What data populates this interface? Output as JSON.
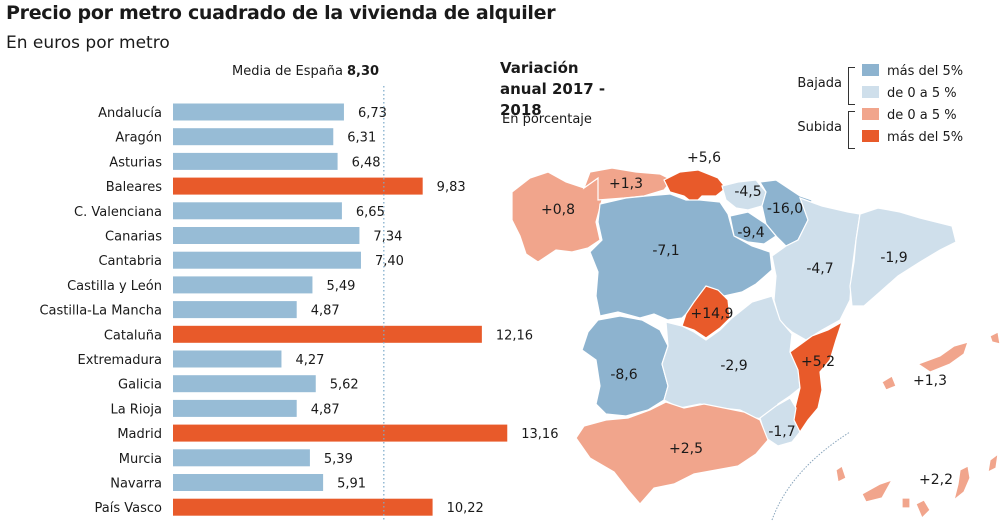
{
  "header": {
    "title": "Precio por metro cuadrado de la vivienda de alquiler",
    "subtitle": "En euros por metro"
  },
  "colors": {
    "below_mean": "#97bcd6",
    "above_mean": "#e85a2a",
    "bajada_mas5": "#8db3cf",
    "bajada_0a5": "#cfdfeb",
    "subida_0a5": "#f1a58c",
    "subida_mas5": "#e85a2a"
  },
  "chart_data": [
    {
      "type": "bar",
      "orientation": "horizontal",
      "title": "Precio por metro cuadrado de la vivienda de alquiler",
      "subtitle": "En euros por metro",
      "xlabel": "",
      "ylabel": "",
      "reference_line": {
        "label": "Media de España",
        "value_label": "8,30",
        "value": 8.3
      },
      "categories": [
        "Andalucía",
        "Aragón",
        "Asturias",
        "Baleares",
        "C. Valenciana",
        "Canarias",
        "Cantabria",
        "Castilla y León",
        "Castilla-La Mancha",
        "Cataluña",
        "Extremadura",
        "Galicia",
        "La Rioja",
        "Madrid",
        "Murcia",
        "Navarra",
        "País Vasco"
      ],
      "values": [
        6.73,
        6.31,
        6.48,
        9.83,
        6.65,
        7.34,
        7.4,
        5.49,
        4.87,
        12.16,
        4.27,
        5.62,
        4.87,
        13.16,
        5.39,
        5.91,
        10.22
      ],
      "value_labels": [
        "6,73",
        "6,31",
        "6,48",
        "9,83",
        "6,65",
        "7,34",
        "7,40",
        "5,49",
        "4,87",
        "12,16",
        "4,27",
        "5,62",
        "4,87",
        "13,16",
        "5,39",
        "5,91",
        "10,22"
      ],
      "highlight": "values above the national mean shown in orange",
      "xlim": [
        0,
        14
      ],
      "grid": false
    },
    {
      "type": "choropleth",
      "title": "Variación anual 2017 - 2018",
      "subtitle": "En porcentaje",
      "legend": {
        "placement": "top-right",
        "groups": [
          {
            "name": "Bajada",
            "items": [
              {
                "label": "más del 5%",
                "class": "bajada_mas5"
              },
              {
                "label": "de 0 a 5 %",
                "class": "bajada_0a5"
              }
            ]
          },
          {
            "name": "Subida",
            "items": [
              {
                "label": "de 0 a 5 %",
                "class": "subida_0a5"
              },
              {
                "label": "más del 5%",
                "class": "subida_mas5"
              }
            ]
          }
        ]
      },
      "regions": [
        {
          "name": "Galicia",
          "label": "+0,8",
          "value": 0.8,
          "class": "subida_0a5"
        },
        {
          "name": "Asturias",
          "label": "+1,3",
          "value": 1.3,
          "class": "subida_0a5"
        },
        {
          "name": "Cantabria",
          "label": "+5,6",
          "value": 5.6,
          "class": "subida_mas5"
        },
        {
          "name": "País Vasco",
          "label": "-4,5",
          "value": -4.5,
          "class": "bajada_0a5"
        },
        {
          "name": "Navarra",
          "label": "-16,0",
          "value": -16.0,
          "class": "bajada_mas5"
        },
        {
          "name": "La Rioja",
          "label": "-9,4",
          "value": -9.4,
          "class": "bajada_mas5"
        },
        {
          "name": "Castilla y León",
          "label": "-7,1",
          "value": -7.1,
          "class": "bajada_mas5"
        },
        {
          "name": "Aragón",
          "label": "-4,7",
          "value": -4.7,
          "class": "bajada_0a5"
        },
        {
          "name": "Cataluña",
          "label": "-1,9",
          "value": -1.9,
          "class": "bajada_0a5"
        },
        {
          "name": "Madrid",
          "label": "+14,9",
          "value": 14.9,
          "class": "subida_mas5"
        },
        {
          "name": "Extremadura",
          "label": "-8,6",
          "value": -8.6,
          "class": "bajada_mas5"
        },
        {
          "name": "Castilla-La Mancha",
          "label": "-2,9",
          "value": -2.9,
          "class": "bajada_0a5"
        },
        {
          "name": "C. Valenciana",
          "label": "+5,2",
          "value": 5.2,
          "class": "subida_mas5"
        },
        {
          "name": "Murcia",
          "label": "-1,7",
          "value": -1.7,
          "class": "bajada_0a5"
        },
        {
          "name": "Andalucía",
          "label": "+2,5",
          "value": 2.5,
          "class": "subida_0a5"
        },
        {
          "name": "Baleares",
          "label": "+1,3",
          "value": 1.3,
          "class": "subida_0a5"
        },
        {
          "name": "Canarias",
          "label": "+2,2",
          "value": 2.2,
          "class": "subida_0a5"
        }
      ]
    }
  ]
}
